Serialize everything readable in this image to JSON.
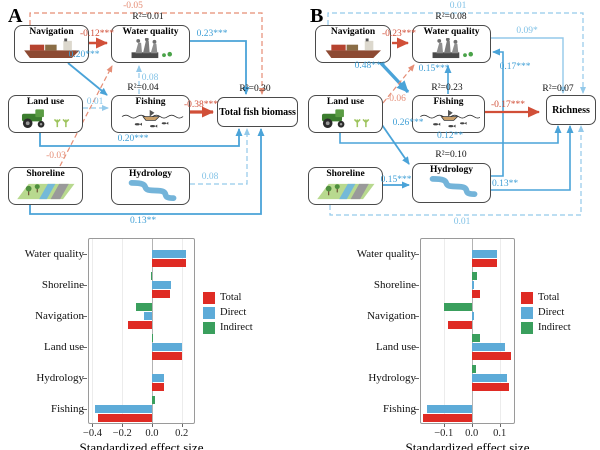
{
  "panels": {
    "a": "A",
    "b": "B"
  },
  "colors": {
    "total": "#df2b24",
    "direct": "#5dabd8",
    "indirect": "#3a9f5d",
    "path_red": "#d14f38",
    "path_red_light": "#e58d75",
    "path_blue": "#4aa3d8",
    "path_blue_light": "#93c9ea"
  },
  "sem_a": {
    "nodes": {
      "navigation": "Navigation",
      "water_quality": "Water quality",
      "land_use": "Land use",
      "fishing": "Fishing",
      "shoreline": "Shoreline",
      "hydrology": "Hydrology",
      "outcome": "Total fish biomass"
    },
    "r2": {
      "water_quality": "R²=0.01",
      "fishing": "R²=0.04",
      "outcome": "R²=0.30"
    },
    "coef": {
      "nav_out": "-0.05",
      "nav_wq": "-0.12***",
      "nav_fish": "0.20***",
      "wq_out": "0.23***",
      "fish_wq": "0.08",
      "land_fish": "0.01",
      "fish_out": "-0.38***",
      "land_out": "0.20***",
      "shore_wq": "-0.03",
      "hydro_out": "0.08",
      "shore_out": "0.13**"
    }
  },
  "sem_b": {
    "nodes": {
      "navigation": "Navigation",
      "water_quality": "Water quality",
      "land_use": "Land use",
      "fishing": "Fishing",
      "shoreline": "Shoreline",
      "hydrology": "Hydrology",
      "outcome": "Richness"
    },
    "r2": {
      "water_quality": "R²=0.08",
      "fishing": "R²=0.23",
      "hydrology": "R²=0.10",
      "outcome": "R²=0.07"
    },
    "coef": {
      "nav_out": "0.01",
      "nav_wq": "-0.23***",
      "nav_fish": "0.48***",
      "wq_out": "0.09*",
      "fish_wq": "0.15***",
      "land_wq": "-0.06",
      "land_hydro": "0.26***",
      "land_out": "0.12**",
      "shore_hydro": "0.15***",
      "shore_out": "0.01",
      "hydro_wq": "0.17***",
      "hydro_out": "0.13**",
      "fish_out": "-0.17***"
    }
  },
  "chart_data": [
    {
      "type": "bar",
      "panel": "A",
      "orientation": "horizontal",
      "categories": [
        "Water quality",
        "Shoreline",
        "Navigation",
        "Land use",
        "Hydrology",
        "Fishing"
      ],
      "series": [
        {
          "name": "Total",
          "color_key": "total",
          "values": [
            0.23,
            0.12,
            -0.16,
            0.2,
            0.08,
            -0.36
          ]
        },
        {
          "name": "Direct",
          "color_key": "direct",
          "values": [
            0.23,
            0.13,
            -0.055,
            0.2,
            0.08,
            -0.38
          ]
        },
        {
          "name": "Indirect",
          "color_key": "indirect",
          "values": [
            0.0,
            -0.005,
            -0.11,
            0.005,
            0.0,
            0.02
          ]
        }
      ],
      "xlabel": "Standardized effect size",
      "xticks": [
        -0.4,
        -0.2,
        0.0,
        0.2
      ],
      "xtick_labels": [
        "−0.4",
        "−0.2",
        "0.0",
        "0.2"
      ],
      "xlim": [
        -0.43,
        0.29
      ],
      "legend": [
        "Total",
        "Direct",
        "Indirect"
      ],
      "legend_position": "right",
      "grid": true
    },
    {
      "type": "bar",
      "panel": "B",
      "orientation": "horizontal",
      "categories": [
        "Water quality",
        "Shoreline",
        "Navigation",
        "Land use",
        "Hydrology",
        "Fishing"
      ],
      "series": [
        {
          "name": "Total",
          "color_key": "total",
          "values": [
            0.09,
            0.03,
            -0.085,
            0.14,
            0.135,
            -0.175
          ]
        },
        {
          "name": "Direct",
          "color_key": "direct",
          "values": [
            0.09,
            0.01,
            0.01,
            0.12,
            0.125,
            -0.16
          ]
        },
        {
          "name": "Indirect",
          "color_key": "indirect",
          "values": [
            0.0,
            0.02,
            -0.1,
            0.03,
            0.015,
            0.0
          ]
        }
      ],
      "xlabel": "Standardized effect size",
      "xticks": [
        -0.1,
        0.0,
        0.1
      ],
      "xtick_labels": [
        "−0.1",
        "0.0",
        "0.1"
      ],
      "xlim": [
        -0.185,
        0.155
      ],
      "legend": [
        "Total",
        "Direct",
        "Indirect"
      ],
      "legend_position": "right",
      "grid": true
    }
  ]
}
